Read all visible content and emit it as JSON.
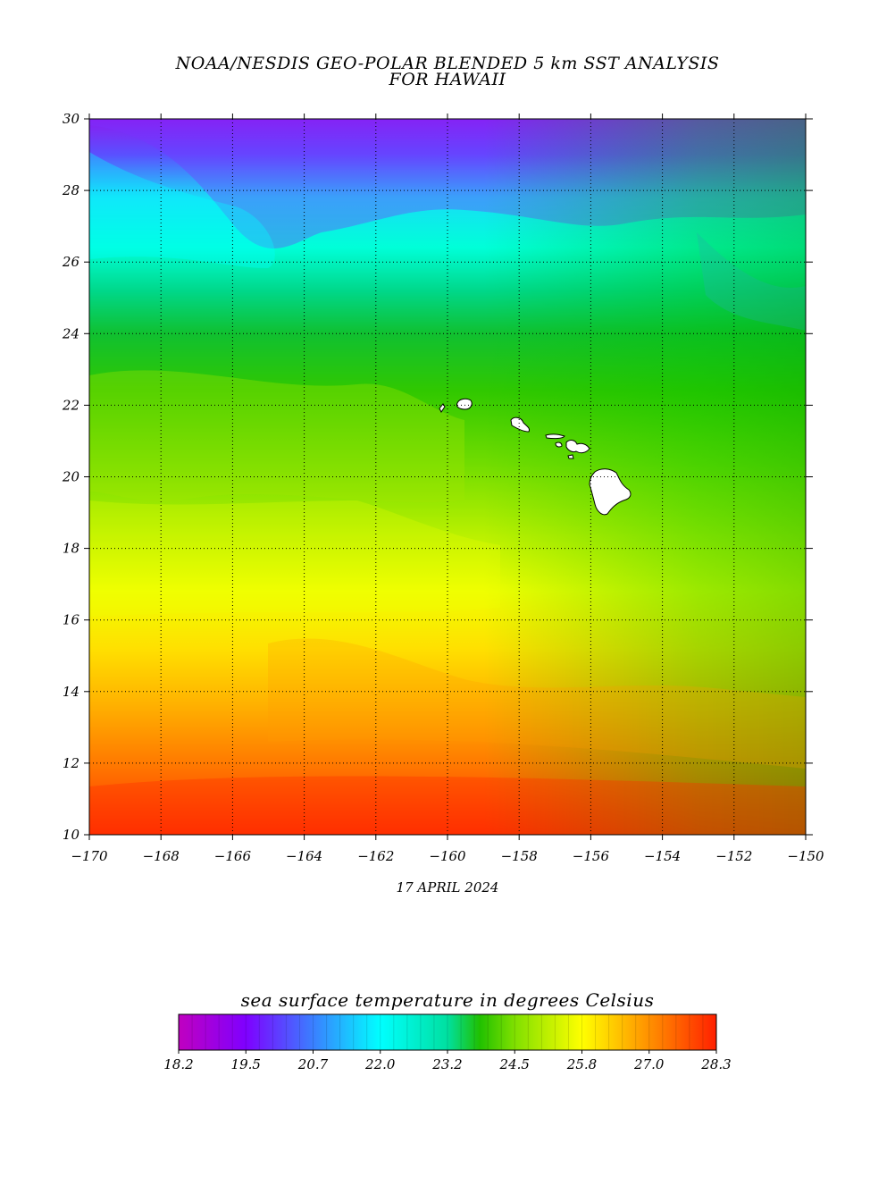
{
  "title": {
    "line1": "NOAA/NESDIS GEO-POLAR BLENDED 5 km SST ANALYSIS",
    "line2": "FOR HAWAII"
  },
  "map": {
    "lon_range": [
      -170,
      -150
    ],
    "lat_range": [
      10,
      30
    ],
    "lon_ticks": [
      "-170",
      "-168",
      "-166",
      "-164",
      "-162",
      "-160",
      "-158",
      "-156",
      "-154",
      "-152",
      "-150"
    ],
    "lat_ticks": [
      "30",
      "28",
      "26",
      "24",
      "22",
      "20",
      "18",
      "16",
      "14",
      "12",
      "10"
    ],
    "gridlines": "dotted",
    "land_color": "#ffffff"
  },
  "date_label": "17 APRIL 2024",
  "legend": {
    "title": "sea surface temperature in degrees Celsius",
    "tick_labels": [
      "18.2",
      "19.5",
      "20.7",
      "22.0",
      "23.2",
      "24.5",
      "25.8",
      "27.0",
      "28.3"
    ],
    "colors": [
      "#c000c0",
      "#7f00ff",
      "#3a7fff",
      "#00ffff",
      "#00e0a0",
      "#20c000",
      "#80e000",
      "#ffff00",
      "#ffc000",
      "#ff8000",
      "#ff2000"
    ]
  }
}
